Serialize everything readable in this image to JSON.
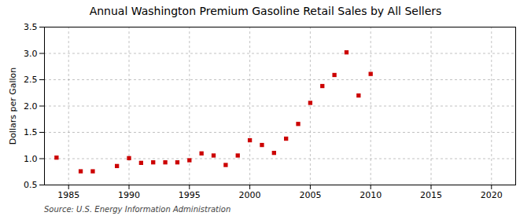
{
  "chart_data": {
    "type": "scatter",
    "title": "Annual Washington Premium Gasoline Retail Sales by All Sellers",
    "ylabel": "Dollars per Gallon",
    "annotations": [
      "Source: U.S. Energy Information Administration"
    ],
    "x": [
      1984,
      1986,
      1987,
      1989,
      1990,
      1991,
      1992,
      1993,
      1994,
      1995,
      1996,
      1997,
      1998,
      1999,
      2000,
      2001,
      2002,
      2003,
      2004,
      2005,
      2006,
      2007,
      2008,
      2009,
      2010
    ],
    "values": [
      1.02,
      0.76,
      0.76,
      0.86,
      1.01,
      0.92,
      0.93,
      0.93,
      0.93,
      0.97,
      1.1,
      1.06,
      0.88,
      1.06,
      1.35,
      1.26,
      1.11,
      1.38,
      1.66,
      2.06,
      2.38,
      2.59,
      3.02,
      2.2,
      2.61
    ],
    "color": "#cc0000",
    "marker": "square",
    "xlim": [
      1983,
      2022
    ],
    "xticks": [
      1985,
      1990,
      1995,
      2000,
      2005,
      2010,
      2015,
      2020
    ],
    "ylim": [
      0.5,
      3.5
    ],
    "yticks": [
      0.5,
      {
        "value": 1,
        "label": "1.0"
      },
      1.5,
      {
        "value": 2,
        "label": "2.0"
      },
      2.5,
      {
        "value": 3,
        "label": "3.0"
      },
      3.5
    ],
    "grid": true
  }
}
